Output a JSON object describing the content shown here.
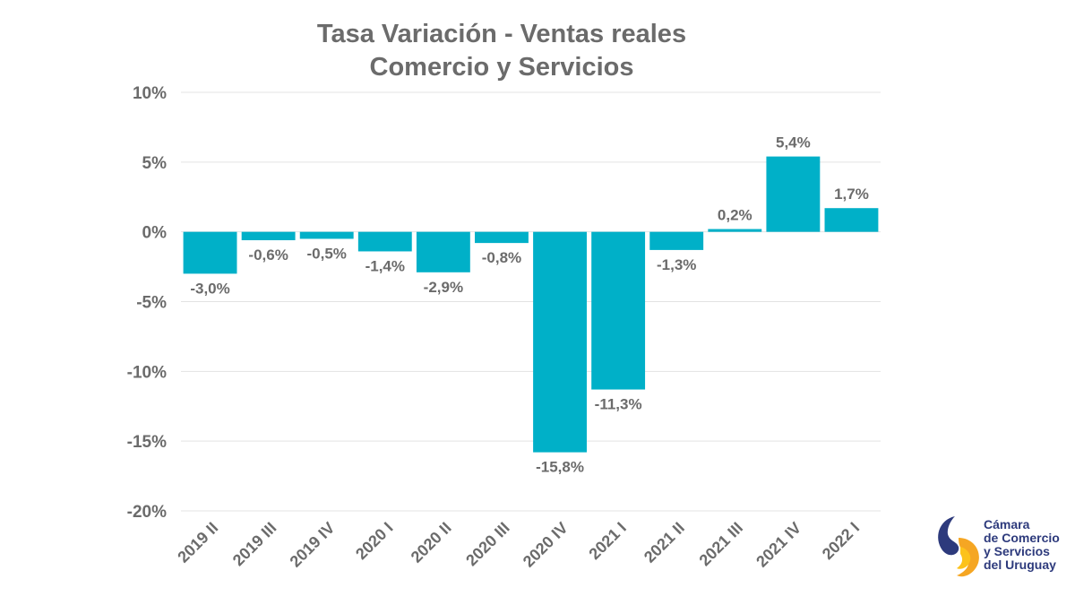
{
  "chart_data": {
    "type": "bar",
    "title": "Tasa Variación - Ventas reales",
    "subtitle": "Comercio y Servicios",
    "categories": [
      "2019 II",
      "2019 III",
      "2019 IV",
      "2020 I",
      "2020 II",
      "2020 III",
      "2020 IV",
      "2021 I",
      "2021 II",
      "2021 III",
      "2021 IV",
      "2022 I"
    ],
    "values": [
      -3.0,
      -0.6,
      -0.5,
      -1.4,
      -2.9,
      -0.8,
      -15.8,
      -11.3,
      -1.3,
      0.2,
      5.4,
      1.7
    ],
    "data_labels": [
      "-3,0%",
      "-0,6%",
      "-0,5%",
      "-1,4%",
      "-2,9%",
      "-0,8%",
      "-15,8%",
      "-11,3%",
      "-1,3%",
      "0,2%",
      "5,4%",
      "1,7%"
    ],
    "ylim": [
      -20,
      10
    ],
    "yticks": [
      10,
      5,
      0,
      -5,
      -10,
      -15,
      -20
    ],
    "ytick_labels": [
      "10%",
      "5%",
      "0%",
      "-5%",
      "-10%",
      "-15%",
      "-20%"
    ],
    "xlabel": "",
    "ylabel": "",
    "grid": true,
    "legend": "none",
    "bar_color": "#00b0c8"
  },
  "logo": {
    "line1": "Cámara",
    "line2": "de Comercio",
    "line3": "y Servicios",
    "line4": "del Uruguay",
    "colors": {
      "navy": "#2d3a7c",
      "orange": "#f5a623",
      "yellow": "#fcc21b"
    }
  }
}
